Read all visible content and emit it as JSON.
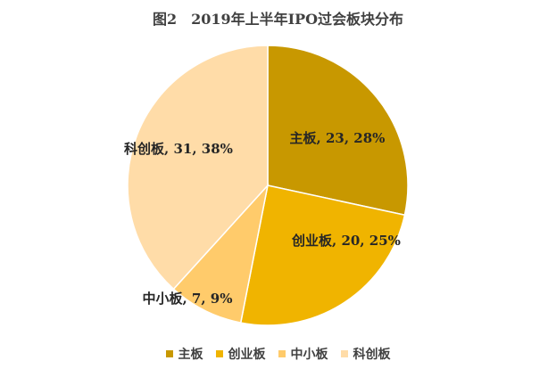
{
  "chart_data": {
    "type": "pie",
    "title": "图2　2019年上半年IPO过会板块分布",
    "categories": [
      "主板",
      "创业板",
      "中小板",
      "科创板"
    ],
    "values": [
      23,
      20,
      7,
      31
    ],
    "percents": [
      "28%",
      "25%",
      "9%",
      "38%"
    ],
    "data_labels": [
      "主板, 23, 28%",
      "创业板, 20, 25%",
      "中小板, 7, 9%",
      "科创板, 31, 38%"
    ],
    "colors": [
      "#C89800",
      "#F0B400",
      "#FFCB6B",
      "#FFDCA8"
    ],
    "legend_position": "bottom"
  }
}
